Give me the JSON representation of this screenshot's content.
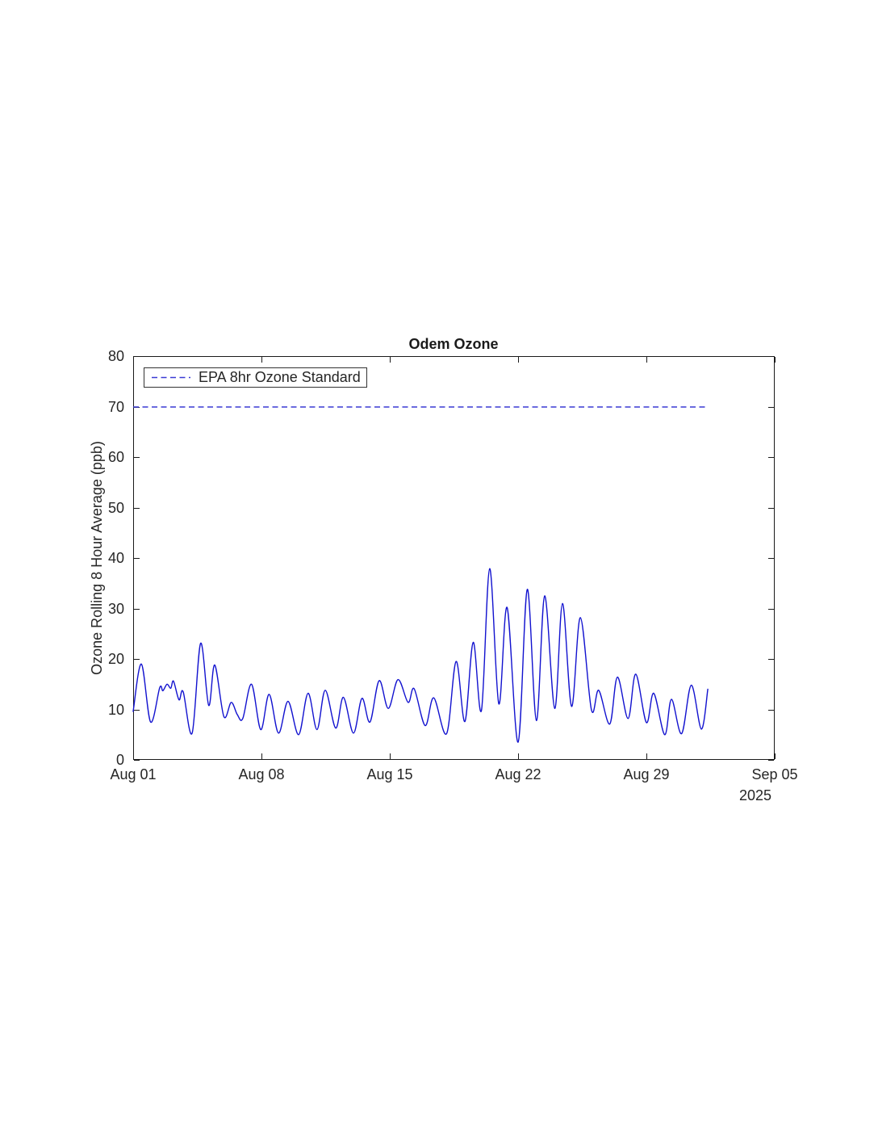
{
  "chart": {
    "title": "Odem Ozone",
    "y_axis_label": "Ozone Rolling 8 Hour Average (ppb)",
    "x_axis_year": "2025",
    "legend_label": "EPA 8hr Ozone Standard"
  },
  "chart_data": {
    "type": "line",
    "title": "Odem Ozone",
    "xlabel": "",
    "ylabel": "Ozone Rolling 8 Hour Average (ppb)",
    "x_axis_year": "2025",
    "legend_label": "EPA 8hr Ozone Standard",
    "legend_position": "top-left",
    "grid": false,
    "xlim_days": [
      0,
      35
    ],
    "ylim": [
      0,
      80
    ],
    "x_ticks": [
      {
        "day": 0,
        "label": "Aug 01"
      },
      {
        "day": 7,
        "label": "Aug 08"
      },
      {
        "day": 14,
        "label": "Aug 15"
      },
      {
        "day": 21,
        "label": "Aug 22"
      },
      {
        "day": 28,
        "label": "Aug 29"
      },
      {
        "day": 35,
        "label": "Sep 05"
      }
    ],
    "y_ticks": [
      0,
      10,
      20,
      30,
      40,
      50,
      60,
      70,
      80
    ],
    "colors": {
      "axis": "#1a1a1a",
      "text": "#262626",
      "background": "#ffffff"
    },
    "series": [
      {
        "name": "Odem ozone rolling 8 hour average",
        "type": "line",
        "style": "solid",
        "color": "#1212cf",
        "points_day_ppb": [
          [
            0.0,
            9.6
          ],
          [
            0.45,
            19.0
          ],
          [
            0.95,
            7.5
          ],
          [
            1.45,
            14.3
          ],
          [
            1.62,
            13.7
          ],
          [
            1.85,
            15.0
          ],
          [
            2.05,
            14.2
          ],
          [
            2.2,
            15.6
          ],
          [
            2.5,
            11.9
          ],
          [
            2.73,
            13.5
          ],
          [
            3.22,
            5.3
          ],
          [
            3.68,
            23.1
          ],
          [
            4.12,
            10.8
          ],
          [
            4.45,
            18.8
          ],
          [
            4.95,
            8.6
          ],
          [
            5.35,
            11.4
          ],
          [
            5.68,
            9.0
          ],
          [
            5.98,
            8.2
          ],
          [
            6.46,
            15.0
          ],
          [
            6.96,
            6.0
          ],
          [
            7.42,
            13.0
          ],
          [
            7.93,
            5.3
          ],
          [
            8.45,
            11.6
          ],
          [
            9.03,
            5.0
          ],
          [
            9.54,
            13.2
          ],
          [
            10.03,
            6.0
          ],
          [
            10.48,
            13.8
          ],
          [
            11.05,
            6.3
          ],
          [
            11.47,
            12.4
          ],
          [
            12.02,
            5.3
          ],
          [
            12.48,
            12.2
          ],
          [
            12.92,
            7.5
          ],
          [
            13.42,
            15.7
          ],
          [
            13.92,
            10.2
          ],
          [
            14.45,
            15.9
          ],
          [
            15.0,
            11.4
          ],
          [
            15.33,
            14.1
          ],
          [
            15.93,
            6.8
          ],
          [
            16.4,
            12.3
          ],
          [
            17.1,
            5.2
          ],
          [
            17.62,
            19.5
          ],
          [
            18.1,
            7.6
          ],
          [
            18.55,
            23.3
          ],
          [
            19.0,
            9.8
          ],
          [
            19.45,
            37.9
          ],
          [
            19.95,
            11.1
          ],
          [
            20.4,
            30.2
          ],
          [
            21.0,
            3.5
          ],
          [
            21.5,
            33.8
          ],
          [
            22.0,
            7.8
          ],
          [
            22.45,
            32.5
          ],
          [
            23.0,
            10.2
          ],
          [
            23.42,
            31.0
          ],
          [
            23.92,
            10.6
          ],
          [
            24.4,
            28.2
          ],
          [
            25.0,
            9.9
          ],
          [
            25.4,
            13.8
          ],
          [
            26.0,
            7.1
          ],
          [
            26.42,
            16.4
          ],
          [
            27.0,
            8.2
          ],
          [
            27.42,
            17.0
          ],
          [
            28.0,
            7.4
          ],
          [
            28.4,
            13.2
          ],
          [
            29.0,
            5.0
          ],
          [
            29.37,
            12.0
          ],
          [
            29.92,
            5.2
          ],
          [
            30.45,
            14.8
          ],
          [
            31.0,
            6.1
          ],
          [
            31.35,
            14.0
          ]
        ]
      },
      {
        "name": "EPA 8hr Ozone Standard",
        "type": "hline",
        "style": "dashed",
        "color": "#3a3ad4",
        "value_ppb": 70,
        "x_range_days": [
          0,
          31.35
        ]
      }
    ]
  }
}
